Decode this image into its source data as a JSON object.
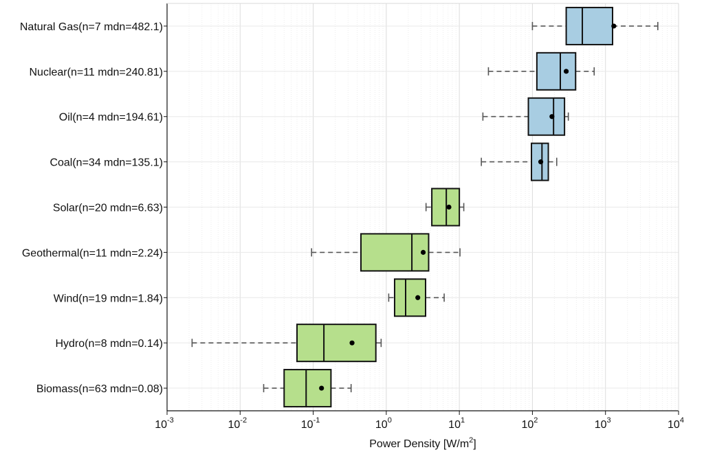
{
  "chart_data": {
    "type": "boxplot",
    "orientation": "horizontal",
    "x_scale": "log",
    "xlim": [
      0.001,
      10000
    ],
    "xticks": [
      {
        "base": "10",
        "exp": "-3",
        "value": 0.001
      },
      {
        "base": "10",
        "exp": "-2",
        "value": 0.01
      },
      {
        "base": "10",
        "exp": "-1",
        "value": 0.1
      },
      {
        "base": "10",
        "exp": "0",
        "value": 1
      },
      {
        "base": "10",
        "exp": "1",
        "value": 10
      },
      {
        "base": "10",
        "exp": "2",
        "value": 100
      },
      {
        "base": "10",
        "exp": "3",
        "value": 1000
      },
      {
        "base": "10",
        "exp": "4",
        "value": 10000
      }
    ],
    "xlabel": {
      "main": "Power Density [W/m",
      "sup": "2",
      "end": "]"
    },
    "grid": true,
    "series": [
      {
        "label": "Natural Gas(n=7 mdn=482.1)",
        "whisker_low": 100,
        "q1": 290,
        "median": 482.1,
        "q3": 1250,
        "whisker_high": 5200,
        "mean": 1300,
        "color": "#a8cde2"
      },
      {
        "label": "Nuclear(n=11 mdn=240.81)",
        "whisker_low": 25,
        "q1": 115,
        "median": 240.81,
        "q3": 390,
        "whisker_high": 700,
        "mean": 290,
        "color": "#a8cde2"
      },
      {
        "label": "Oil(n=4 mdn=194.61)",
        "whisker_low": 21,
        "q1": 88,
        "median": 194.61,
        "q3": 275,
        "whisker_high": 310,
        "mean": 185,
        "color": "#a8cde2"
      },
      {
        "label": "Coal(n=34 mdn=135.1)",
        "whisker_low": 20,
        "q1": 97,
        "median": 135.1,
        "q3": 165,
        "whisker_high": 215,
        "mean": 130,
        "color": "#a8cde2"
      },
      {
        "label": "Solar(n=20 mdn=6.63)",
        "whisker_low": 3.5,
        "q1": 4.2,
        "median": 6.63,
        "q3": 10,
        "whisker_high": 11.5,
        "mean": 7.2,
        "color": "#b6df8c"
      },
      {
        "label": "Geothermal(n=11 mdn=2.24)",
        "whisker_low": 0.095,
        "q1": 0.45,
        "median": 2.24,
        "q3": 3.8,
        "whisker_high": 10.2,
        "mean": 3.2,
        "color": "#b6df8c"
      },
      {
        "label": "Wind(n=19 mdn=1.84)",
        "whisker_low": 1.08,
        "q1": 1.3,
        "median": 1.84,
        "q3": 3.45,
        "whisker_high": 6.2,
        "mean": 2.7,
        "color": "#b6df8c"
      },
      {
        "label": "Hydro(n=8 mdn=0.14)",
        "whisker_low": 0.0022,
        "q1": 0.06,
        "median": 0.14,
        "q3": 0.72,
        "whisker_high": 0.85,
        "mean": 0.34,
        "color": "#b6df8c"
      },
      {
        "label": "Biomass(n=63 mdn=0.08)",
        "whisker_low": 0.021,
        "q1": 0.04,
        "median": 0.08,
        "q3": 0.175,
        "whisker_high": 0.33,
        "mean": 0.13,
        "color": "#b6df8c"
      }
    ]
  }
}
